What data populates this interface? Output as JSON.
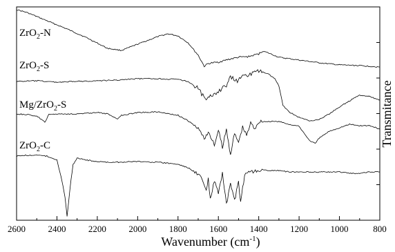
{
  "chart_data": {
    "type": "line",
    "title": "",
    "xlabel": "Wavenumber (cm⁻¹)",
    "ylabel": "Transmitance",
    "xlim": [
      2600,
      800
    ],
    "x_reversed": true,
    "x_ticks": [
      2600,
      2400,
      2200,
      2000,
      1800,
      1600,
      1400,
      1200,
      1000,
      800
    ],
    "y_tick_labels_shown": false,
    "grid": false,
    "legend": "none (series labelled directly at left)",
    "series": [
      {
        "name": "ZrO₂-N",
        "points": [
          [
            2600,
            14
          ],
          [
            2550,
            18
          ],
          [
            2450,
            30
          ],
          [
            2350,
            42
          ],
          [
            2250,
            55
          ],
          [
            2150,
            70
          ],
          [
            2080,
            73
          ],
          [
            2000,
            64
          ],
          [
            1900,
            53
          ],
          [
            1850,
            49
          ],
          [
            1800,
            52
          ],
          [
            1750,
            62
          ],
          [
            1700,
            80
          ],
          [
            1670,
            96
          ],
          [
            1650,
            92
          ],
          [
            1600,
            90
          ],
          [
            1550,
            86
          ],
          [
            1500,
            83
          ],
          [
            1450,
            82
          ],
          [
            1400,
            78
          ],
          [
            1380,
            74
          ],
          [
            1350,
            77
          ],
          [
            1300,
            83
          ],
          [
            1200,
            87
          ],
          [
            1100,
            91
          ],
          [
            1000,
            94
          ],
          [
            900,
            95
          ],
          [
            800,
            97
          ]
        ]
      },
      {
        "name": "ZrO₂-S",
        "points": [
          [
            2600,
            118
          ],
          [
            2500,
            117
          ],
          [
            2400,
            119
          ],
          [
            2300,
            118
          ],
          [
            2200,
            117
          ],
          [
            2100,
            116
          ],
          [
            2000,
            114
          ],
          [
            1900,
            114
          ],
          [
            1800,
            115
          ],
          [
            1750,
            118
          ],
          [
            1700,
            128
          ],
          [
            1660,
            146
          ],
          [
            1640,
            140
          ],
          [
            1600,
            132
          ],
          [
            1560,
            124
          ],
          [
            1540,
            112
          ],
          [
            1500,
            118
          ],
          [
            1480,
            106
          ],
          [
            1460,
            110
          ],
          [
            1420,
            105
          ],
          [
            1400,
            103
          ],
          [
            1380,
            104
          ],
          [
            1350,
            108
          ],
          [
            1320,
            114
          ],
          [
            1300,
            125
          ],
          [
            1280,
            152
          ],
          [
            1250,
            162
          ],
          [
            1200,
            170
          ],
          [
            1150,
            175
          ],
          [
            1100,
            173
          ],
          [
            1050,
            165
          ],
          [
            1000,
            155
          ],
          [
            950,
            146
          ],
          [
            900,
            138
          ],
          [
            850,
            140
          ],
          [
            800,
            145
          ]
        ]
      },
      {
        "name": "Mg/ZrO₂-S",
        "points": [
          [
            2600,
            165
          ],
          [
            2550,
            166
          ],
          [
            2500,
            168
          ],
          [
            2460,
            177
          ],
          [
            2440,
            166
          ],
          [
            2400,
            165
          ],
          [
            2300,
            165
          ],
          [
            2200,
            163
          ],
          [
            2150,
            165
          ],
          [
            2100,
            172
          ],
          [
            2080,
            167
          ],
          [
            2000,
            163
          ],
          [
            1900,
            162
          ],
          [
            1800,
            167
          ],
          [
            1750,
            175
          ],
          [
            1700,
            186
          ],
          [
            1670,
            200
          ],
          [
            1650,
            192
          ],
          [
            1620,
            210
          ],
          [
            1600,
            189
          ],
          [
            1580,
            213
          ],
          [
            1560,
            188
          ],
          [
            1540,
            223
          ],
          [
            1520,
            194
          ],
          [
            1500,
            206
          ],
          [
            1480,
            184
          ],
          [
            1460,
            196
          ],
          [
            1440,
            178
          ],
          [
            1420,
            186
          ],
          [
            1400,
            176
          ],
          [
            1350,
            176
          ],
          [
            1300,
            176
          ],
          [
            1250,
            180
          ],
          [
            1200,
            183
          ],
          [
            1150,
            203
          ],
          [
            1120,
            208
          ],
          [
            1100,
            200
          ],
          [
            1050,
            190
          ],
          [
            1000,
            185
          ],
          [
            950,
            180
          ],
          [
            900,
            182
          ],
          [
            850,
            182
          ],
          [
            800,
            187
          ]
        ]
      },
      {
        "name": "ZrO₂-C",
        "points": [
          [
            2600,
            226
          ],
          [
            2550,
            225
          ],
          [
            2500,
            225
          ],
          [
            2450,
            226
          ],
          [
            2400,
            232
          ],
          [
            2380,
            255
          ],
          [
            2360,
            285
          ],
          [
            2350,
            313
          ],
          [
            2345,
            300
          ],
          [
            2330,
            260
          ],
          [
            2320,
            238
          ],
          [
            2300,
            229
          ],
          [
            2250,
            232
          ],
          [
            2200,
            234
          ],
          [
            2150,
            235
          ],
          [
            2100,
            235
          ],
          [
            2000,
            234
          ],
          [
            1900,
            235
          ],
          [
            1800,
            238
          ],
          [
            1750,
            243
          ],
          [
            1700,
            252
          ],
          [
            1680,
            260
          ],
          [
            1660,
            277
          ],
          [
            1650,
            259
          ],
          [
            1640,
            290
          ],
          [
            1620,
            262
          ],
          [
            1600,
            280
          ],
          [
            1580,
            252
          ],
          [
            1560,
            295
          ],
          [
            1540,
            268
          ],
          [
            1520,
            290
          ],
          [
            1500,
            265
          ],
          [
            1490,
            292
          ],
          [
            1470,
            255
          ],
          [
            1450,
            249
          ],
          [
            1400,
            246
          ],
          [
            1350,
            247
          ],
          [
            1300,
            247
          ],
          [
            1250,
            249
          ],
          [
            1200,
            249
          ],
          [
            1150,
            249
          ],
          [
            1100,
            249
          ],
          [
            1050,
            249
          ],
          [
            1000,
            249
          ],
          [
            950,
            251
          ],
          [
            900,
            251
          ],
          [
            850,
            249
          ],
          [
            800,
            249
          ]
        ]
      }
    ]
  },
  "colors": {
    "line": "#000000",
    "axis": "#000000",
    "background": "#ffffff"
  }
}
